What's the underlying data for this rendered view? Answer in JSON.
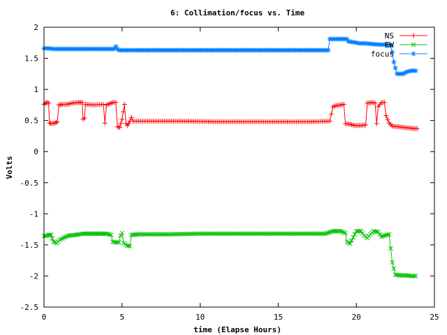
{
  "chart_data": {
    "type": "line",
    "title": "6: Collimation/focus vs. Time",
    "xlabel": "time (Elapse Hours)",
    "ylabel": "Volts",
    "xlim": [
      0,
      25
    ],
    "ylim": [
      -2.5,
      2
    ],
    "x_ticks": [
      0,
      5,
      10,
      15,
      20,
      25
    ],
    "y_ticks": [
      -2.5,
      -2,
      -1.5,
      -1,
      -0.5,
      0,
      0.5,
      1,
      1.5,
      2
    ],
    "x_tick_labels": [
      "0",
      "5",
      "10",
      "15",
      "20",
      "25"
    ],
    "y_tick_labels": [
      "-2.5",
      "-2",
      "-1.5",
      "-1",
      "-0.5",
      "0",
      "0.5",
      "1",
      "1.5",
      "2"
    ],
    "grid": false,
    "legend_position": "top-right",
    "series": [
      {
        "name": "NS",
        "color": "#ff0000",
        "marker": "plus",
        "points": [
          [
            0.0,
            0.76
          ],
          [
            0.15,
            0.79
          ],
          [
            0.3,
            0.78
          ],
          [
            0.35,
            0.46
          ],
          [
            0.5,
            0.45
          ],
          [
            0.7,
            0.46
          ],
          [
            0.85,
            0.48
          ],
          [
            0.95,
            0.75
          ],
          [
            1.2,
            0.76
          ],
          [
            1.5,
            0.76
          ],
          [
            1.8,
            0.78
          ],
          [
            2.2,
            0.79
          ],
          [
            2.45,
            0.79
          ],
          [
            2.5,
            0.52
          ],
          [
            2.6,
            0.54
          ],
          [
            2.65,
            0.76
          ],
          [
            3.2,
            0.75
          ],
          [
            3.8,
            0.76
          ],
          [
            3.9,
            0.46
          ],
          [
            4.0,
            0.75
          ],
          [
            4.4,
            0.79
          ],
          [
            4.6,
            0.79
          ],
          [
            4.7,
            0.4
          ],
          [
            4.85,
            0.39
          ],
          [
            5.0,
            0.52
          ],
          [
            5.15,
            0.76
          ],
          [
            5.25,
            0.45
          ],
          [
            5.35,
            0.42
          ],
          [
            5.5,
            0.49
          ],
          [
            5.6,
            0.55
          ],
          [
            5.7,
            0.49
          ],
          [
            7.0,
            0.49
          ],
          [
            9.0,
            0.49
          ],
          [
            11.0,
            0.48
          ],
          [
            13.0,
            0.48
          ],
          [
            15.0,
            0.48
          ],
          [
            17.0,
            0.48
          ],
          [
            18.3,
            0.49
          ],
          [
            18.5,
            0.72
          ],
          [
            18.7,
            0.74
          ],
          [
            19.0,
            0.75
          ],
          [
            19.2,
            0.76
          ],
          [
            19.3,
            0.45
          ],
          [
            19.6,
            0.44
          ],
          [
            19.9,
            0.42
          ],
          [
            20.3,
            0.42
          ],
          [
            20.6,
            0.43
          ],
          [
            20.7,
            0.78
          ],
          [
            21.0,
            0.79
          ],
          [
            21.2,
            0.78
          ],
          [
            21.3,
            0.45
          ],
          [
            21.4,
            0.72
          ],
          [
            21.6,
            0.79
          ],
          [
            21.8,
            0.79
          ],
          [
            21.9,
            0.58
          ],
          [
            22.1,
            0.46
          ],
          [
            22.3,
            0.41
          ],
          [
            22.7,
            0.4
          ],
          [
            23.0,
            0.39
          ],
          [
            23.4,
            0.38
          ],
          [
            23.7,
            0.37
          ],
          [
            23.9,
            0.37
          ]
        ]
      },
      {
        "name": "EW",
        "color": "#00c000",
        "marker": "cross",
        "points": [
          [
            0.0,
            -1.36
          ],
          [
            0.3,
            -1.34
          ],
          [
            0.45,
            -1.34
          ],
          [
            0.6,
            -1.45
          ],
          [
            0.8,
            -1.47
          ],
          [
            1.0,
            -1.42
          ],
          [
            1.3,
            -1.38
          ],
          [
            1.6,
            -1.35
          ],
          [
            2.0,
            -1.34
          ],
          [
            2.5,
            -1.32
          ],
          [
            3.0,
            -1.32
          ],
          [
            3.5,
            -1.32
          ],
          [
            4.0,
            -1.32
          ],
          [
            4.3,
            -1.34
          ],
          [
            4.4,
            -1.45
          ],
          [
            4.6,
            -1.46
          ],
          [
            4.8,
            -1.46
          ],
          [
            4.9,
            -1.35
          ],
          [
            5.0,
            -1.31
          ],
          [
            5.1,
            -1.47
          ],
          [
            5.3,
            -1.51
          ],
          [
            5.5,
            -1.52
          ],
          [
            5.6,
            -1.34
          ],
          [
            6.0,
            -1.33
          ],
          [
            8.0,
            -1.33
          ],
          [
            10.0,
            -1.32
          ],
          [
            12.0,
            -1.32
          ],
          [
            14.0,
            -1.32
          ],
          [
            16.0,
            -1.32
          ],
          [
            18.0,
            -1.32
          ],
          [
            18.5,
            -1.28
          ],
          [
            19.0,
            -1.28
          ],
          [
            19.3,
            -1.31
          ],
          [
            19.4,
            -1.45
          ],
          [
            19.6,
            -1.48
          ],
          [
            19.8,
            -1.38
          ],
          [
            20.0,
            -1.28
          ],
          [
            20.3,
            -1.28
          ],
          [
            20.5,
            -1.35
          ],
          [
            20.7,
            -1.39
          ],
          [
            20.9,
            -1.33
          ],
          [
            21.1,
            -1.28
          ],
          [
            21.4,
            -1.29
          ],
          [
            21.6,
            -1.37
          ],
          [
            21.8,
            -1.35
          ],
          [
            22.1,
            -1.33
          ],
          [
            22.3,
            -1.78
          ],
          [
            22.5,
            -1.98
          ],
          [
            22.8,
            -1.99
          ],
          [
            23.2,
            -1.99
          ],
          [
            23.5,
            -2.0
          ],
          [
            23.8,
            -2.0
          ]
        ]
      },
      {
        "name": "focus",
        "color": "#0080ff",
        "marker": "star",
        "points": [
          [
            0.0,
            1.66
          ],
          [
            0.3,
            1.66
          ],
          [
            0.6,
            1.65
          ],
          [
            1.0,
            1.65
          ],
          [
            2.0,
            1.65
          ],
          [
            3.0,
            1.65
          ],
          [
            4.0,
            1.65
          ],
          [
            4.5,
            1.65
          ],
          [
            4.6,
            1.69
          ],
          [
            4.7,
            1.65
          ],
          [
            4.8,
            1.63
          ],
          [
            6.0,
            1.63
          ],
          [
            8.0,
            1.63
          ],
          [
            10.0,
            1.63
          ],
          [
            12.0,
            1.63
          ],
          [
            14.0,
            1.63
          ],
          [
            16.0,
            1.63
          ],
          [
            18.2,
            1.63
          ],
          [
            18.3,
            1.81
          ],
          [
            18.8,
            1.81
          ],
          [
            19.4,
            1.81
          ],
          [
            19.5,
            1.77
          ],
          [
            19.8,
            1.76
          ],
          [
            20.2,
            1.74
          ],
          [
            20.6,
            1.74
          ],
          [
            21.0,
            1.73
          ],
          [
            21.5,
            1.72
          ],
          [
            21.9,
            1.72
          ],
          [
            22.2,
            1.71
          ],
          [
            22.3,
            1.6
          ],
          [
            22.4,
            1.44
          ],
          [
            22.6,
            1.25
          ],
          [
            23.0,
            1.25
          ],
          [
            23.2,
            1.28
          ],
          [
            23.5,
            1.3
          ],
          [
            23.8,
            1.3
          ]
        ]
      }
    ]
  }
}
